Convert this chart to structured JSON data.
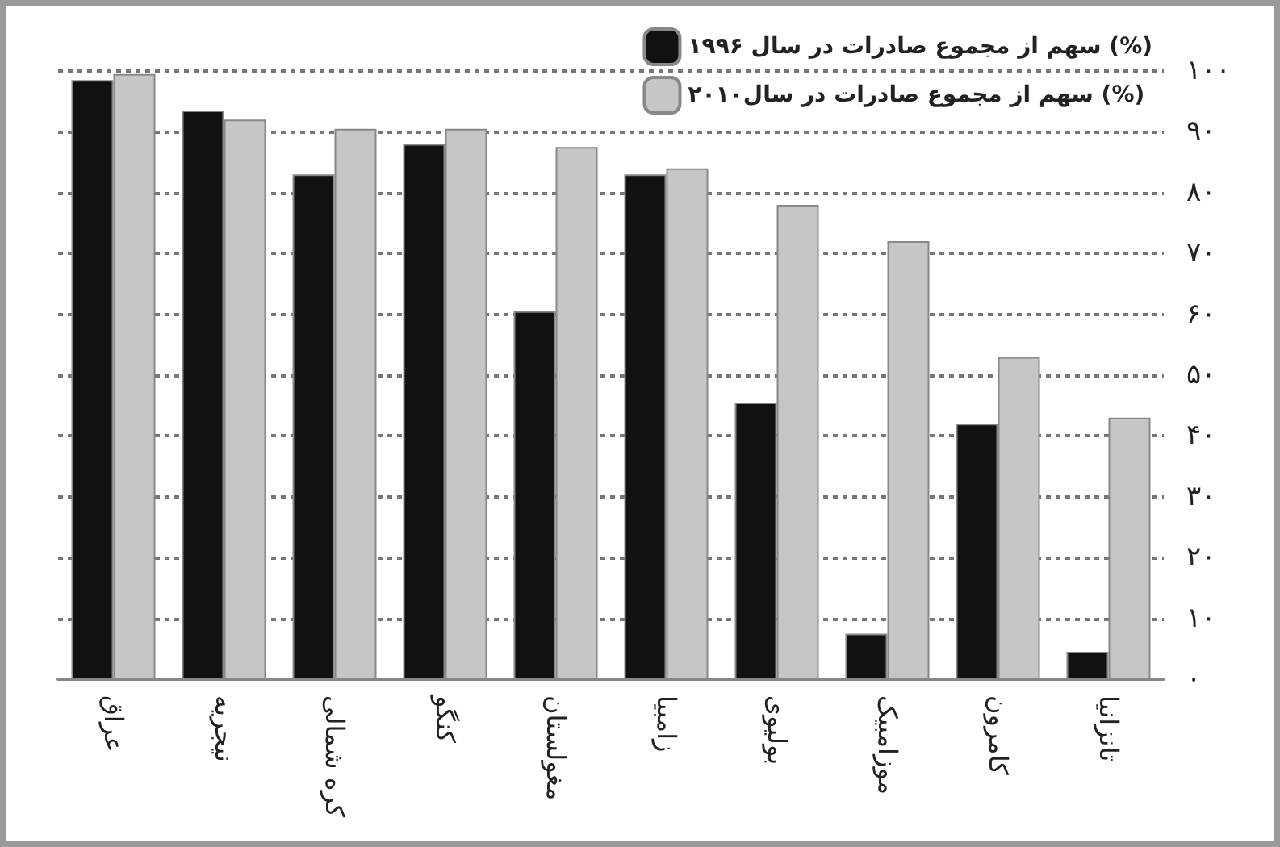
{
  "chart_data": {
    "type": "bar",
    "categories": [
      "عراق",
      "نیجریه",
      "کره شمالی",
      "کنگو",
      "مغولستان",
      "زامبیا",
      "بولیوی",
      "موزامبیک",
      "کامرون",
      "تانزانیا"
    ],
    "series": [
      {
        "name": "سهم از مجموع صادرات در سال ۱۹۹۶ (%)",
        "color": "#111111",
        "values": [
          98.5,
          93.5,
          83,
          88,
          60.5,
          83,
          45.5,
          7.5,
          42,
          4.5
        ]
      },
      {
        "name": "سهم از مجموع صادرات در سال۲۰۱۰ (%)",
        "color": "#c6c6c6",
        "values": [
          99.5,
          92,
          90.5,
          90.5,
          87.5,
          84,
          78,
          72,
          53,
          43
        ]
      }
    ],
    "ylim": [
      0,
      100
    ],
    "yticks": [
      {
        "value": 0,
        "label": "۰"
      },
      {
        "value": 10,
        "label": "۱۰"
      },
      {
        "value": 20,
        "label": "۲۰"
      },
      {
        "value": 30,
        "label": "۳۰"
      },
      {
        "value": 40,
        "label": "۴۰"
      },
      {
        "value": 50,
        "label": "۵۰"
      },
      {
        "value": 60,
        "label": "۶۰"
      },
      {
        "value": 70,
        "label": "۷۰"
      },
      {
        "value": 80,
        "label": "۸۰"
      },
      {
        "value": 90,
        "label": "۹۰"
      },
      {
        "value": 100,
        "label": "۱۰۰"
      }
    ],
    "grid": "y",
    "legend": "top right"
  }
}
